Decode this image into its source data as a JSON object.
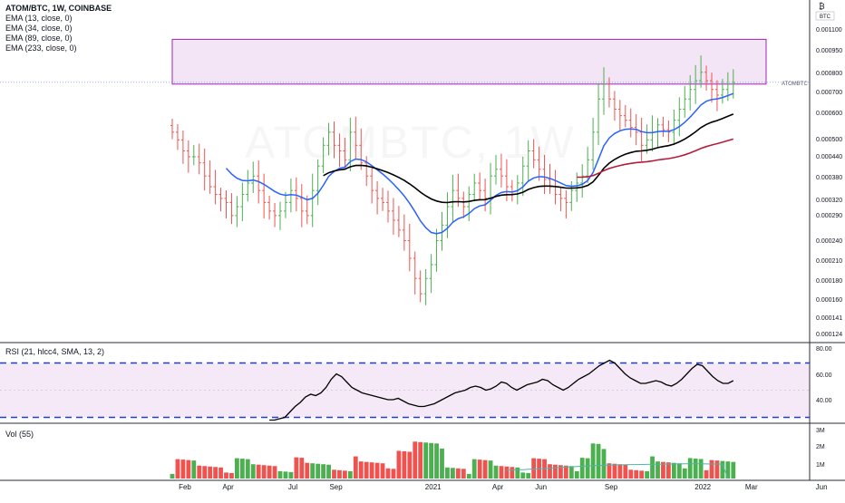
{
  "watermark": "ATOMBTC, 1W",
  "header": {
    "title": "ATOM/BTC, 1W, COINBASE",
    "indicators": [
      "EMA (13, close, 0)",
      "EMA (34, close, 0)",
      "EMA (89, close, 0)",
      "EMA (233, close, 0)"
    ]
  },
  "price_scale": {
    "currency": "BTC",
    "currency_prefix": "₿",
    "symbol_tag": "ATOMBTC",
    "ticks": [
      "0.001100",
      "0.000950",
      "0.000800",
      "0.000700",
      "0.000600",
      "0.000500",
      "0.000440",
      "0.000380",
      "0.000320",
      "0.000290",
      "0.000240",
      "0.000210",
      "0.000180",
      "0.000160",
      "0.000141",
      "0.000124"
    ]
  },
  "rsi_pane": {
    "label": "RSI (21, hlcc4, SMA, 13, 2)",
    "ticks": [
      "80.00",
      "60.00",
      "40.00"
    ]
  },
  "volume_pane": {
    "label": "Vol (55)",
    "ticks": [
      "3M",
      "2M",
      "1M"
    ]
  },
  "colors": {
    "up": "#4caf50",
    "down": "#ef5350",
    "ema13": "#2962ff",
    "ema34": "#000000",
    "ema89": "#b71c3c",
    "zone": "#9c27b0",
    "rsi_band": "#1e40cc",
    "vol_ma": "#4db6ac"
  },
  "chart_data": {
    "type": "candlestick",
    "title": "ATOM/BTC, 1W, COINBASE",
    "xlabel": "",
    "ylabel": "",
    "y_scale": "log",
    "ylim": [
      0.000124,
      0.0014
    ],
    "x_tick_labels": [
      "Feb",
      "Apr",
      "Jul",
      "Sep",
      "2021",
      "Apr",
      "Jun",
      "Sep",
      "2022",
      "Mar",
      "Jun"
    ],
    "x_tick_weeks": [
      0,
      8,
      20,
      28,
      46,
      58,
      66,
      79,
      96,
      105,
      118
    ],
    "resistance_zone": {
      "low": 0.00078,
      "high": 0.00108
    },
    "last_price": 0.00079,
    "close": [
      0.00055,
      0.00052,
      0.00048,
      0.00046,
      0.00046,
      0.00044,
      0.0004,
      0.00037,
      0.00035,
      0.00034,
      0.00033,
      0.0003,
      0.00032,
      0.00035,
      0.00038,
      0.0004,
      0.00036,
      0.00033,
      0.00031,
      0.0003,
      0.00031,
      0.00033,
      0.00036,
      0.00034,
      0.00031,
      0.0003,
      0.00036,
      0.00043,
      0.0005,
      0.00055,
      0.0005,
      0.00048,
      0.00045,
      0.00055,
      0.0005,
      0.00044,
      0.0004,
      0.00036,
      0.00034,
      0.00033,
      0.00031,
      0.00029,
      0.00027,
      0.00025,
      0.00022,
      0.00019,
      0.00017,
      0.00019,
      0.00021,
      0.00025,
      0.00028,
      0.00032,
      0.00036,
      0.00034,
      0.00032,
      0.00035,
      0.00038,
      0.00036,
      0.00034,
      0.0004,
      0.00042,
      0.0004,
      0.00037,
      0.00035,
      0.00038,
      0.00043,
      0.00048,
      0.00045,
      0.00042,
      0.00039,
      0.00037,
      0.00035,
      0.00034,
      0.00033,
      0.00036,
      0.00038,
      0.0004,
      0.00045,
      0.00055,
      0.0007,
      0.00078,
      0.0007,
      0.00065,
      0.00062,
      0.0006,
      0.00057,
      0.00055,
      0.0005,
      0.00052,
      0.00055,
      0.00058,
      0.00056,
      0.00055,
      0.0006,
      0.00065,
      0.0007,
      0.00075,
      0.0008,
      0.00085,
      0.0008,
      0.00075,
      0.00072,
      0.00075,
      0.00078,
      0.00079
    ],
    "series": [
      {
        "name": "EMA (13, close, 0)",
        "values": []
      },
      {
        "name": "EMA (34, close, 0)",
        "values": []
      },
      {
        "name": "EMA (89, close, 0)",
        "values": []
      }
    ],
    "rsi": {
      "ylim": [
        27,
        83
      ],
      "bands": [
        30,
        70
      ],
      "values": [
        28,
        28,
        29,
        30,
        34,
        38,
        41,
        45,
        47,
        46,
        48,
        52,
        58,
        62,
        60,
        56,
        52,
        50,
        48,
        47,
        46,
        45,
        44,
        43,
        43,
        44,
        42,
        40,
        39,
        38,
        38,
        39,
        40,
        42,
        44,
        46,
        48,
        49,
        50,
        52,
        53,
        52,
        50,
        51,
        53,
        56,
        55,
        52,
        50,
        52,
        54,
        55,
        56,
        58,
        57,
        54,
        52,
        50,
        52,
        55,
        58,
        60,
        62,
        65,
        68,
        70,
        72,
        70,
        66,
        62,
        59,
        57,
        55,
        55,
        56,
        57,
        56,
        54,
        53,
        55,
        58,
        62,
        66,
        69,
        68,
        64,
        60,
        57,
        55,
        55,
        57
      ]
    },
    "volume": {
      "ylim": [
        0,
        3300000
      ],
      "ma_values": [
        550000,
        560000,
        570000,
        580000,
        600000,
        610000,
        630000,
        650000,
        680000,
        700000,
        720000,
        740000,
        760000,
        780000,
        800000,
        820000,
        840000,
        850000,
        860000,
        870000,
        880000,
        890000,
        900000,
        905000,
        910000,
        915000,
        920000,
        925000,
        930000,
        935000,
        940000,
        945000,
        950000,
        955000,
        960000,
        960000,
        955000,
        950000,
        945000,
        940000,
        935000,
        930
      ],
      "values": []
    }
  }
}
